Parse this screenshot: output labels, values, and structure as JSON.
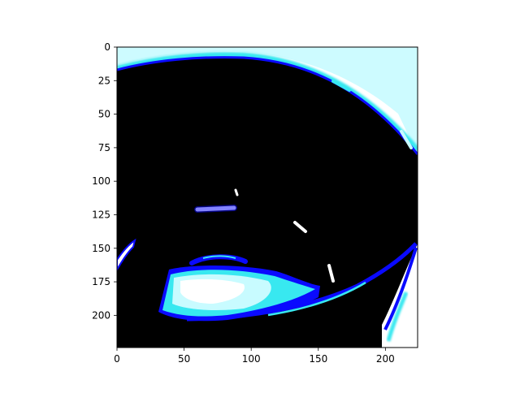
{
  "chart_data": {
    "type": "heatmap",
    "title": "",
    "xlabel": "",
    "ylabel": "",
    "xlim": [
      0,
      224
    ],
    "ylim": [
      224,
      0
    ],
    "xticks": [
      0,
      50,
      100,
      150,
      200
    ],
    "yticks": [
      0,
      25,
      50,
      75,
      100,
      125,
      150,
      175,
      200
    ],
    "grid": false,
    "legend": "none",
    "image_content": "a thresholded image of a dark bowl-like object in blue, cyan and white",
    "colors": {
      "background": "#ffffff",
      "dark": "#000000",
      "blue": "#0a0aff",
      "cyan": "#38e8f0",
      "light_cyan": "#c8fbff"
    }
  }
}
